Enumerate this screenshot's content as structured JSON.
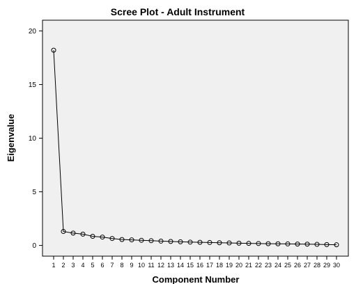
{
  "chart_data": {
    "type": "line",
    "title": "Scree Plot - Adult Instrument",
    "xlabel": "Component Number",
    "ylabel": "Eigenvalue",
    "ylim": [
      -1,
      21
    ],
    "yticks": [
      0,
      5,
      10,
      15,
      20
    ],
    "x": [
      1,
      2,
      3,
      4,
      5,
      6,
      7,
      8,
      9,
      10,
      11,
      12,
      13,
      14,
      15,
      16,
      17,
      18,
      19,
      20,
      21,
      22,
      23,
      24,
      25,
      26,
      27,
      28,
      29,
      30
    ],
    "series": [
      {
        "values": [
          18.2,
          1.3,
          1.15,
          1.05,
          0.85,
          0.78,
          0.65,
          0.55,
          0.52,
          0.48,
          0.44,
          0.4,
          0.37,
          0.34,
          0.31,
          0.29,
          0.27,
          0.25,
          0.23,
          0.21,
          0.19,
          0.18,
          0.16,
          0.15,
          0.14,
          0.13,
          0.12,
          0.1,
          0.08,
          0.06
        ]
      }
    ],
    "grid": false,
    "marker": "hollow-circle",
    "color": "#000000"
  }
}
